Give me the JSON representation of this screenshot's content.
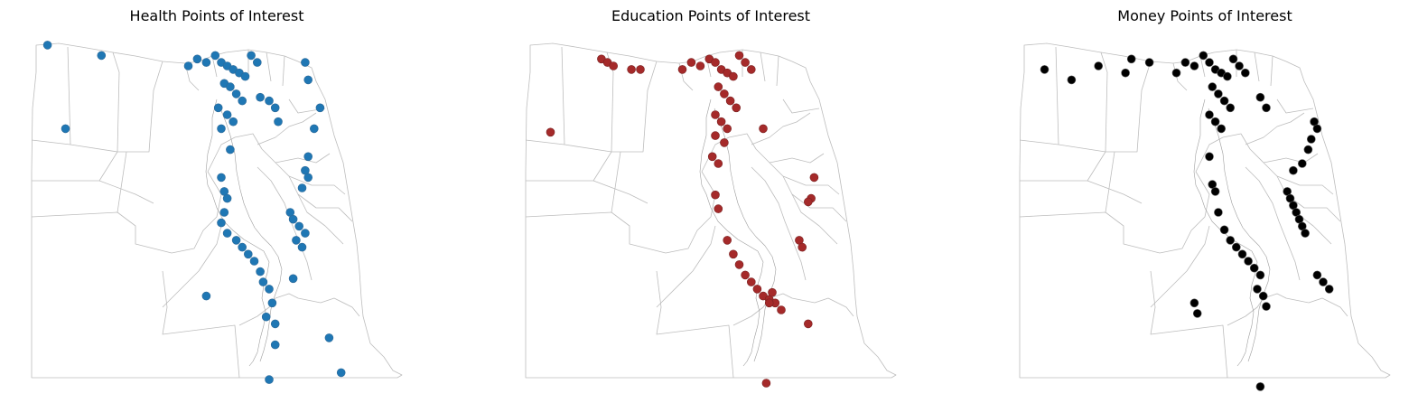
{
  "figure": {
    "panels": [
      {
        "title": "Health Points of Interest",
        "marker_color": "#1f77b4",
        "marker_edge": "#2f6a98"
      },
      {
        "title": "Education Points of Interest",
        "marker_color": "#a52a2a",
        "marker_edge": "#7a2222"
      },
      {
        "title": "Money Points of Interest",
        "marker_color": "#000000",
        "marker_edge": "#555555"
      }
    ]
  },
  "chart_data": [
    {
      "type": "scatter",
      "title": "Health Points of Interest",
      "map": "Egypt administrative boundaries",
      "axes_visible": false,
      "x": [
        25.2,
        27.0,
        25.8,
        29.9,
        30.2,
        30.5,
        30.8,
        31.0,
        31.2,
        31.4,
        31.6,
        31.8,
        32.0,
        32.2,
        31.1,
        31.3,
        31.5,
        31.7,
        30.9,
        31.2,
        31.4,
        31.0,
        31.3,
        32.3,
        33.8,
        33.9,
        32.6,
        32.8,
        32.9,
        31.0,
        31.1,
        31.2,
        31.1,
        31.0,
        31.2,
        31.5,
        31.7,
        31.9,
        32.1,
        32.3,
        34.3,
        34.1,
        33.9,
        33.8,
        33.9,
        33.7,
        32.4,
        32.6,
        32.7,
        32.5,
        32.8,
        33.3,
        33.4,
        33.6,
        33.8,
        33.5,
        33.7,
        30.5,
        34.6,
        32.8,
        33.4,
        35.0,
        32.6
      ],
      "y": [
        31.6,
        31.3,
        29.2,
        31.0,
        31.2,
        31.1,
        31.3,
        31.1,
        31.0,
        30.9,
        30.8,
        30.7,
        31.3,
        31.1,
        30.5,
        30.4,
        30.2,
        30.0,
        29.8,
        29.6,
        29.4,
        29.2,
        28.6,
        30.1,
        31.1,
        30.6,
        30.0,
        29.8,
        29.4,
        27.8,
        27.4,
        27.2,
        26.8,
        26.5,
        26.2,
        26.0,
        25.8,
        25.6,
        25.4,
        25.1,
        29.8,
        29.2,
        28.4,
        28.0,
        27.8,
        27.5,
        24.8,
        24.6,
        24.2,
        23.8,
        23.6,
        26.8,
        26.6,
        26.4,
        26.2,
        26.0,
        25.8,
        24.4,
        23.2,
        23.0,
        24.9,
        22.2,
        22.0
      ],
      "xlim": [
        24.7,
        37.0
      ],
      "ylim": [
        21.9,
        31.7
      ]
    },
    {
      "type": "scatter",
      "title": "Education Points of Interest",
      "map": "Egypt administrative boundaries",
      "axes_visible": false,
      "x": [
        27.2,
        27.4,
        27.6,
        28.2,
        28.5,
        29.9,
        30.2,
        30.5,
        30.8,
        31.0,
        31.2,
        31.4,
        31.6,
        31.8,
        32.0,
        32.2,
        31.1,
        31.3,
        31.5,
        31.7,
        31.0,
        31.2,
        31.4,
        31.0,
        31.3,
        25.5,
        32.6,
        30.9,
        31.1,
        31.0,
        31.1,
        31.4,
        31.6,
        31.8,
        32.0,
        32.2,
        32.4,
        32.6,
        32.8,
        33.0,
        33.2,
        34.3,
        34.2,
        34.1,
        33.8,
        33.9,
        32.9,
        32.8,
        34.1,
        32.7
      ],
      "y": [
        31.2,
        31.1,
        31.0,
        30.9,
        30.9,
        30.9,
        31.1,
        31.0,
        31.2,
        31.1,
        30.9,
        30.8,
        30.7,
        31.3,
        31.1,
        30.9,
        30.4,
        30.2,
        30.0,
        29.8,
        29.6,
        29.4,
        29.2,
        29.0,
        28.8,
        29.1,
        29.2,
        28.4,
        28.2,
        27.3,
        26.9,
        26.0,
        25.6,
        25.3,
        25.0,
        24.8,
        24.6,
        24.4,
        24.3,
        24.2,
        24.0,
        27.8,
        27.2,
        27.1,
        26.0,
        25.8,
        24.5,
        24.2,
        23.6,
        21.9
      ],
      "xlim": [
        24.7,
        37.0
      ],
      "ylim": [
        21.9,
        31.7
      ]
    },
    {
      "type": "scatter",
      "title": "Money Points of Interest",
      "map": "Egypt administrative boundaries",
      "axes_visible": false,
      "x": [
        25.5,
        26.4,
        27.3,
        28.2,
        28.4,
        29.0,
        29.9,
        30.2,
        30.5,
        30.8,
        31.0,
        31.2,
        31.4,
        31.6,
        31.8,
        32.0,
        32.2,
        31.1,
        31.3,
        31.5,
        31.7,
        31.0,
        31.2,
        31.4,
        32.7,
        32.9,
        34.5,
        34.6,
        34.4,
        34.3,
        34.1,
        33.8,
        33.6,
        33.7,
        33.8,
        33.9,
        34.0,
        34.1,
        34.2,
        31.1,
        31.2,
        31.0,
        31.3,
        31.5,
        31.7,
        31.9,
        32.1,
        32.3,
        32.5,
        32.7,
        32.6,
        32.8,
        32.9,
        34.6,
        34.8,
        35.0,
        30.5,
        30.6,
        32.7
      ],
      "y": [
        30.9,
        30.6,
        31.0,
        30.8,
        31.2,
        31.1,
        30.8,
        31.1,
        31.0,
        31.3,
        31.1,
        30.9,
        30.8,
        30.7,
        31.2,
        31.0,
        30.8,
        30.4,
        30.2,
        30.0,
        29.8,
        29.6,
        29.4,
        29.2,
        30.1,
        29.8,
        29.4,
        29.2,
        28.9,
        28.6,
        28.2,
        28.0,
        27.4,
        27.2,
        27.0,
        26.8,
        26.6,
        26.4,
        26.2,
        27.6,
        27.4,
        28.4,
        26.8,
        26.3,
        26.0,
        25.8,
        25.6,
        25.4,
        25.2,
        25.0,
        24.6,
        24.4,
        24.1,
        25.0,
        24.8,
        24.6,
        24.2,
        23.9,
        21.8
      ],
      "xlim": [
        24.7,
        37.0
      ],
      "ylim": [
        21.9,
        31.7
      ]
    }
  ]
}
